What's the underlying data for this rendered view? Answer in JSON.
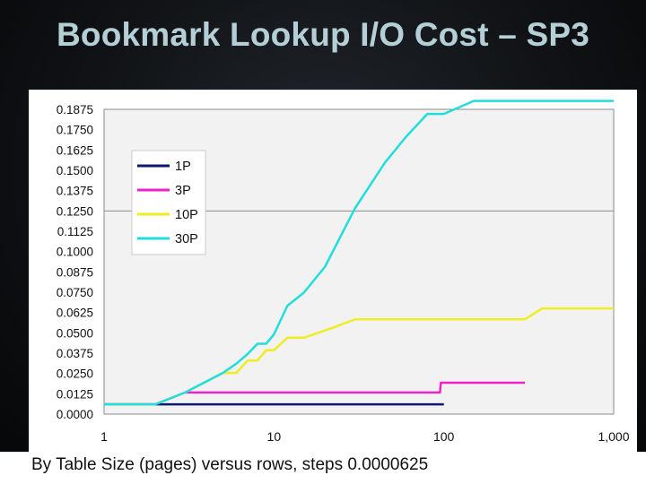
{
  "slide": {
    "title": "Bookmark Lookup I/O Cost – SP3",
    "caption": "By Table Size (pages) versus rows, steps 0.0000625"
  },
  "chart_data": {
    "type": "line",
    "title": "",
    "xlabel": "",
    "ylabel": "",
    "x_scale": "log",
    "xlim": [
      1,
      1000
    ],
    "ylim": [
      0,
      0.1875
    ],
    "x_ticks": [
      "1",
      "10",
      "100",
      "1,000"
    ],
    "y_ticks": [
      "0.0000",
      "0.0125",
      "0.0250",
      "0.0375",
      "0.0500",
      "0.0625",
      "0.0750",
      "0.0875",
      "0.1000",
      "0.1125",
      "0.1250",
      "0.1375",
      "0.1500",
      "0.1625",
      "0.1750",
      "0.1875"
    ],
    "grid": {
      "horizontal_at": [
        0.125
      ],
      "vertical": false
    },
    "legend": {
      "position": "top-left"
    },
    "plot_background": "#f2f2f2",
    "series": [
      {
        "name": "1P",
        "color": "#0a1a6e",
        "points": [
          [
            1,
            0.006
          ],
          [
            100,
            0.006
          ]
        ]
      },
      {
        "name": "3P",
        "color": "#ee22cc",
        "points": [
          [
            1,
            0.006
          ],
          [
            2,
            0.006
          ],
          [
            3,
            0.0133
          ],
          [
            95,
            0.0133
          ],
          [
            96,
            0.0193
          ],
          [
            300,
            0.0193
          ]
        ]
      },
      {
        "name": "10P",
        "color": "#eeee22",
        "points": [
          [
            1,
            0.006
          ],
          [
            2,
            0.006
          ],
          [
            3,
            0.0133
          ],
          [
            5,
            0.0253
          ],
          [
            6,
            0.0253
          ],
          [
            7,
            0.033
          ],
          [
            8,
            0.033
          ],
          [
            9,
            0.0393
          ],
          [
            10,
            0.0393
          ],
          [
            12,
            0.047
          ],
          [
            15,
            0.047
          ],
          [
            22,
            0.053
          ],
          [
            30,
            0.0583
          ],
          [
            300,
            0.0583
          ],
          [
            380,
            0.065
          ],
          [
            1000,
            0.065
          ]
        ]
      },
      {
        "name": "30P",
        "color": "#22dddd",
        "points": [
          [
            1,
            0.006
          ],
          [
            2,
            0.006
          ],
          [
            3,
            0.0133
          ],
          [
            5,
            0.0253
          ],
          [
            6,
            0.031
          ],
          [
            7,
            0.037
          ],
          [
            8,
            0.0433
          ],
          [
            9,
            0.0433
          ],
          [
            10,
            0.049
          ],
          [
            12,
            0.0667
          ],
          [
            15,
            0.0747
          ],
          [
            20,
            0.0907
          ],
          [
            30,
            0.1267
          ],
          [
            45,
            0.1547
          ],
          [
            60,
            0.1707
          ],
          [
            80,
            0.1847
          ],
          [
            100,
            0.1847
          ],
          [
            150,
            0.1927
          ],
          [
            1000,
            0.1927
          ]
        ]
      }
    ]
  }
}
